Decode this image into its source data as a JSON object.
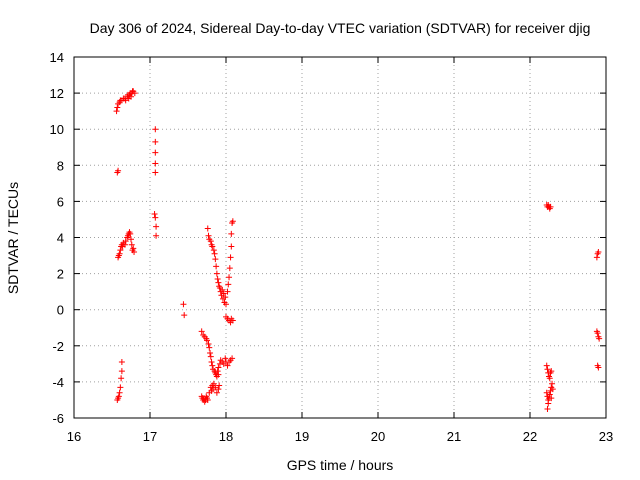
{
  "chart_data": {
    "type": "scatter",
    "title": "Day 306 of 2024, Sidereal Day-to-day VTEC variation (SDTVAR) for receiver djig",
    "xlabel": "GPS time / hours",
    "ylabel": "SDTVAR / TECUs",
    "xlim": [
      16,
      23
    ],
    "ylim": [
      -6,
      14
    ],
    "xticks": [
      "16",
      "17",
      "18",
      "19",
      "20",
      "21",
      "22",
      "23"
    ],
    "yticks": [
      "-6",
      "-4",
      "-2",
      "0",
      "2",
      "4",
      "6",
      "8",
      "10",
      "12",
      "14"
    ],
    "grid": true,
    "marker": "+",
    "color": "#ff0000",
    "series": [
      {
        "name": "SDTVAR",
        "points": [
          [
            16.56,
            11.0
          ],
          [
            16.57,
            11.2
          ],
          [
            16.58,
            11.4
          ],
          [
            16.6,
            11.5
          ],
          [
            16.61,
            11.6
          ],
          [
            16.63,
            11.6
          ],
          [
            16.65,
            11.7
          ],
          [
            16.67,
            11.7
          ],
          [
            16.68,
            11.6
          ],
          [
            16.7,
            11.8
          ],
          [
            16.71,
            11.9
          ],
          [
            16.72,
            11.7
          ],
          [
            16.73,
            11.9
          ],
          [
            16.74,
            12.0
          ],
          [
            16.75,
            11.8
          ],
          [
            16.76,
            12.0
          ],
          [
            16.77,
            12.1
          ],
          [
            16.78,
            12.1
          ],
          [
            16.8,
            12.0
          ],
          [
            16.57,
            7.6
          ],
          [
            16.58,
            7.7
          ],
          [
            16.58,
            2.9
          ],
          [
            16.59,
            3.0
          ],
          [
            16.6,
            3.1
          ],
          [
            16.61,
            3.3
          ],
          [
            16.62,
            3.5
          ],
          [
            16.63,
            3.6
          ],
          [
            16.64,
            3.5
          ],
          [
            16.65,
            3.7
          ],
          [
            16.67,
            3.6
          ],
          [
            16.68,
            3.8
          ],
          [
            16.7,
            4.0
          ],
          [
            16.71,
            4.1
          ],
          [
            16.72,
            4.2
          ],
          [
            16.73,
            4.3
          ],
          [
            16.74,
            4.2
          ],
          [
            16.75,
            3.9
          ],
          [
            16.76,
            3.6
          ],
          [
            16.77,
            3.3
          ],
          [
            16.78,
            3.4
          ],
          [
            16.79,
            3.2
          ],
          [
            16.57,
            -5.0
          ],
          [
            16.58,
            -4.9
          ],
          [
            16.59,
            -4.8
          ],
          [
            16.6,
            -4.6
          ],
          [
            16.61,
            -4.3
          ],
          [
            16.62,
            -3.8
          ],
          [
            16.63,
            -3.4
          ],
          [
            16.63,
            -2.9
          ],
          [
            17.07,
            10.0
          ],
          [
            17.07,
            9.3
          ],
          [
            17.07,
            8.7
          ],
          [
            17.07,
            8.1
          ],
          [
            17.07,
            7.6
          ],
          [
            17.06,
            5.3
          ],
          [
            17.07,
            5.1
          ],
          [
            17.08,
            4.6
          ],
          [
            17.08,
            4.1
          ],
          [
            17.44,
            0.3
          ],
          [
            17.45,
            -0.3
          ],
          [
            17.68,
            -1.2
          ],
          [
            17.7,
            -1.4
          ],
          [
            17.72,
            -1.5
          ],
          [
            17.74,
            -1.6
          ],
          [
            17.75,
            -1.7
          ],
          [
            17.77,
            -1.9
          ],
          [
            17.78,
            -2.1
          ],
          [
            17.79,
            -2.4
          ],
          [
            17.8,
            -2.6
          ],
          [
            17.81,
            -2.9
          ],
          [
            17.82,
            -3.1
          ],
          [
            17.83,
            -3.3
          ],
          [
            17.85,
            -3.4
          ],
          [
            17.86,
            -3.5
          ],
          [
            17.87,
            -3.6
          ],
          [
            17.88,
            -3.7
          ],
          [
            17.89,
            -3.4
          ],
          [
            17.9,
            -3.2
          ],
          [
            17.9,
            -3.6
          ],
          [
            17.92,
            -3.0
          ],
          [
            17.93,
            -2.8
          ],
          [
            17.95,
            -2.9
          ],
          [
            17.97,
            -3.0
          ],
          [
            17.99,
            -2.7
          ],
          [
            18.0,
            -2.9
          ],
          [
            18.02,
            -3.1
          ],
          [
            18.04,
            -2.9
          ],
          [
            18.06,
            -2.8
          ],
          [
            18.08,
            -2.7
          ],
          [
            17.68,
            -4.8
          ],
          [
            17.69,
            -4.9
          ],
          [
            17.7,
            -5.0
          ],
          [
            17.71,
            -4.9
          ],
          [
            17.72,
            -5.1
          ],
          [
            17.73,
            -5.0
          ],
          [
            17.74,
            -4.8
          ],
          [
            17.75,
            -4.9
          ],
          [
            17.76,
            -5.0
          ],
          [
            17.78,
            -4.6
          ],
          [
            17.8,
            -4.3
          ],
          [
            17.81,
            -4.5
          ],
          [
            17.82,
            -4.2
          ],
          [
            17.83,
            -4.4
          ],
          [
            17.84,
            -4.1
          ],
          [
            17.86,
            -4.3
          ],
          [
            17.88,
            -4.6
          ],
          [
            17.9,
            -4.4
          ],
          [
            17.91,
            -4.2
          ],
          [
            17.76,
            4.5
          ],
          [
            17.77,
            4.1
          ],
          [
            17.78,
            3.9
          ],
          [
            17.8,
            3.8
          ],
          [
            17.81,
            3.6
          ],
          [
            17.82,
            3.5
          ],
          [
            17.84,
            3.3
          ],
          [
            17.85,
            3.1
          ],
          [
            17.86,
            2.8
          ],
          [
            17.87,
            2.4
          ],
          [
            17.88,
            2.0
          ],
          [
            17.89,
            1.7
          ],
          [
            17.9,
            1.5
          ],
          [
            17.91,
            1.3
          ],
          [
            17.92,
            1.2
          ],
          [
            17.93,
            1.0
          ],
          [
            17.94,
            0.8
          ],
          [
            17.95,
            1.1
          ],
          [
            17.96,
            0.6
          ],
          [
            17.97,
            0.9
          ],
          [
            17.98,
            0.4
          ],
          [
            17.99,
            0.7
          ],
          [
            18.0,
            0.3
          ],
          [
            18.0,
            -0.4
          ],
          [
            18.02,
            -0.5
          ],
          [
            18.04,
            -0.6
          ],
          [
            18.06,
            -0.7
          ],
          [
            18.07,
            -0.5
          ],
          [
            18.09,
            -0.6
          ],
          [
            18.02,
            1.0
          ],
          [
            18.03,
            1.4
          ],
          [
            18.04,
            1.8
          ],
          [
            18.05,
            2.3
          ],
          [
            18.06,
            2.9
          ],
          [
            18.07,
            3.5
          ],
          [
            18.07,
            4.2
          ],
          [
            18.08,
            4.8
          ],
          [
            18.09,
            4.9
          ],
          [
            22.22,
            5.8
          ],
          [
            22.23,
            5.7
          ],
          [
            22.24,
            5.8
          ],
          [
            22.25,
            5.7
          ],
          [
            22.26,
            5.6
          ],
          [
            22.27,
            5.7
          ],
          [
            22.22,
            -3.1
          ],
          [
            22.23,
            -3.3
          ],
          [
            22.24,
            -3.5
          ],
          [
            22.25,
            -3.7
          ],
          [
            22.26,
            -3.8
          ],
          [
            22.27,
            -3.5
          ],
          [
            22.28,
            -3.4
          ],
          [
            22.22,
            -4.6
          ],
          [
            22.23,
            -4.8
          ],
          [
            22.24,
            -5.0
          ],
          [
            22.25,
            -4.9
          ],
          [
            22.26,
            -4.7
          ],
          [
            22.27,
            -4.5
          ],
          [
            22.28,
            -4.3
          ],
          [
            22.29,
            -4.1
          ],
          [
            22.3,
            -4.4
          ],
          [
            22.23,
            -5.5
          ],
          [
            22.24,
            -5.2
          ],
          [
            22.28,
            -4.9
          ],
          [
            22.88,
            2.9
          ],
          [
            22.89,
            3.1
          ],
          [
            22.9,
            3.2
          ],
          [
            22.88,
            -1.2
          ],
          [
            22.89,
            -1.3
          ],
          [
            22.9,
            -1.5
          ],
          [
            22.91,
            -1.6
          ],
          [
            22.89,
            -3.1
          ],
          [
            22.9,
            -3.2
          ]
        ]
      }
    ]
  }
}
